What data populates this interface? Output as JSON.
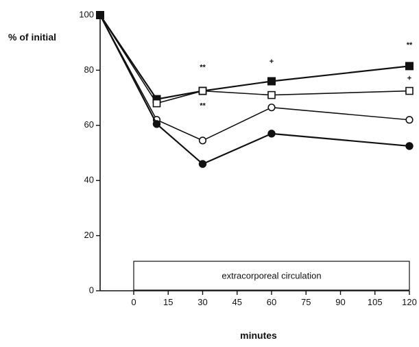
{
  "chart_data": {
    "type": "line",
    "title": "",
    "xlabel": "minutes",
    "ylabel": "% of initial",
    "x_ticks": [
      "0",
      "15",
      "30",
      "45",
      "60",
      "75",
      "90",
      "105",
      "120"
    ],
    "y_ticks": [
      "0",
      "20",
      "40",
      "60",
      "80",
      "100"
    ],
    "xlim": [
      -15,
      120
    ],
    "ylim": [
      0,
      100
    ],
    "grid": false,
    "legend": "none",
    "band": {
      "label": "extracorporeal circulation",
      "x_start": 0,
      "x_end": 120
    },
    "x": [
      -15,
      10,
      30,
      60,
      120
    ],
    "series": [
      {
        "marker": "filled-square",
        "values": [
          100,
          69.5,
          72.5,
          76,
          81.5
        ]
      },
      {
        "marker": "open-square",
        "values": [
          100,
          68,
          72.5,
          71,
          72.5
        ]
      },
      {
        "marker": "open-circle",
        "values": [
          100,
          62,
          54.5,
          66.5,
          62
        ]
      },
      {
        "marker": "filled-circle",
        "values": [
          100,
          60.5,
          46,
          57,
          52.5
        ]
      }
    ],
    "annotations": [
      {
        "text": "**",
        "x": 30,
        "y": 81
      },
      {
        "text": "**",
        "x": 30,
        "y": 67
      },
      {
        "text": "+",
        "x": 60,
        "y": 83
      },
      {
        "text": "**",
        "x": 120,
        "y": 89
      },
      {
        "text": "+",
        "x": 120,
        "y": 77
      }
    ]
  }
}
